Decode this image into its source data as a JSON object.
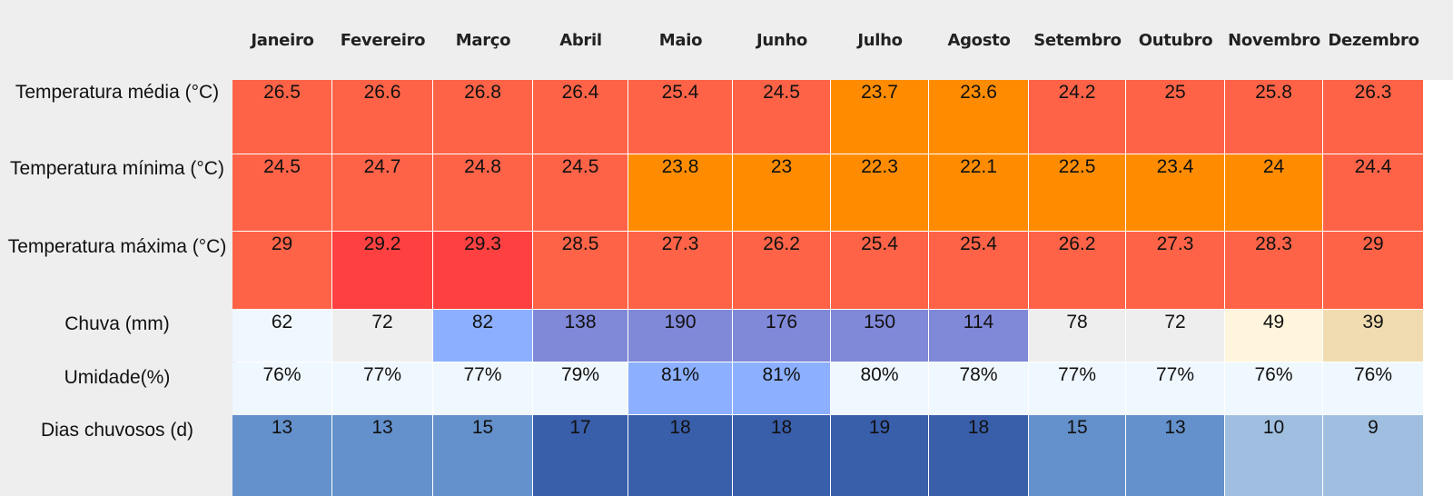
{
  "chart_data": {
    "type": "table",
    "columns": [
      "Janeiro",
      "Fevereiro",
      "Março",
      "Abril",
      "Maio",
      "Junho",
      "Julho",
      "Agosto",
      "Setembro",
      "Outubro",
      "Novembro",
      "Dezembro"
    ],
    "rows": [
      {
        "label": "Temperatura média (°C)",
        "values": [
          "26.5",
          "26.6",
          "26.8",
          "26.4",
          "25.4",
          "24.5",
          "23.7",
          "23.6",
          "24.2",
          "25",
          "25.8",
          "26.3"
        ],
        "colors": [
          "#ff6347",
          "#ff6347",
          "#ff6347",
          "#ff6347",
          "#ff6347",
          "#ff6347",
          "#ff8c00",
          "#ff8c00",
          "#ff6347",
          "#ff6347",
          "#ff6347",
          "#ff6347"
        ]
      },
      {
        "label": "Temperatura mínima (°C)",
        "values": [
          "24.5",
          "24.7",
          "24.8",
          "24.5",
          "23.8",
          "23",
          "22.3",
          "22.1",
          "22.5",
          "23.4",
          "24",
          "24.4"
        ],
        "colors": [
          "#ff6347",
          "#ff6347",
          "#ff6347",
          "#ff6347",
          "#ff8c00",
          "#ff8c00",
          "#ff8c00",
          "#ff8c00",
          "#ff8c00",
          "#ff8c00",
          "#ff8c00",
          "#ff6347"
        ]
      },
      {
        "label": "Temperatura máxima (°C)",
        "values": [
          "29",
          "29.2",
          "29.3",
          "28.5",
          "27.3",
          "26.2",
          "25.4",
          "25.4",
          "26.2",
          "27.3",
          "28.3",
          "29"
        ],
        "colors": [
          "#ff6347",
          "#ff4040",
          "#ff4040",
          "#ff6347",
          "#ff6347",
          "#ff6347",
          "#ff6347",
          "#ff6347",
          "#ff6347",
          "#ff6347",
          "#ff6347",
          "#ff6347"
        ]
      },
      {
        "label": "Chuva (mm)",
        "values": [
          "62",
          "72",
          "82",
          "138",
          "190",
          "176",
          "150",
          "114",
          "78",
          "72",
          "49",
          "39"
        ],
        "colors": [
          "#f0f8ff",
          "#eeeeee",
          "#8cb0ff",
          "#8088d8",
          "#8088d8",
          "#8088d8",
          "#8088d8",
          "#8088d8",
          "#eeeeee",
          "#eeeeee",
          "#fff5dc",
          "#f0dcb0"
        ]
      },
      {
        "label": "Umidade(%)",
        "values": [
          "76%",
          "77%",
          "77%",
          "79%",
          "81%",
          "81%",
          "80%",
          "78%",
          "77%",
          "77%",
          "76%",
          "76%"
        ],
        "colors": [
          "#f0f8ff",
          "#f0f8ff",
          "#f0f8ff",
          "#f0f8ff",
          "#8cb0ff",
          "#8cb0ff",
          "#f0f8ff",
          "#f0f8ff",
          "#f0f8ff",
          "#f0f8ff",
          "#f0f8ff",
          "#f0f8ff"
        ]
      },
      {
        "label": "Dias chuvosos (d)",
        "values": [
          "13",
          "13",
          "15",
          "17",
          "18",
          "18",
          "19",
          "18",
          "15",
          "13",
          "10",
          "9"
        ],
        "colors": [
          "#6491cc",
          "#6491cc",
          "#6491cc",
          "#395eaa",
          "#395eaa",
          "#395eaa",
          "#395eaa",
          "#395eaa",
          "#6491cc",
          "#6491cc",
          "#a0bfe0",
          "#a0bfe0"
        ]
      }
    ]
  }
}
